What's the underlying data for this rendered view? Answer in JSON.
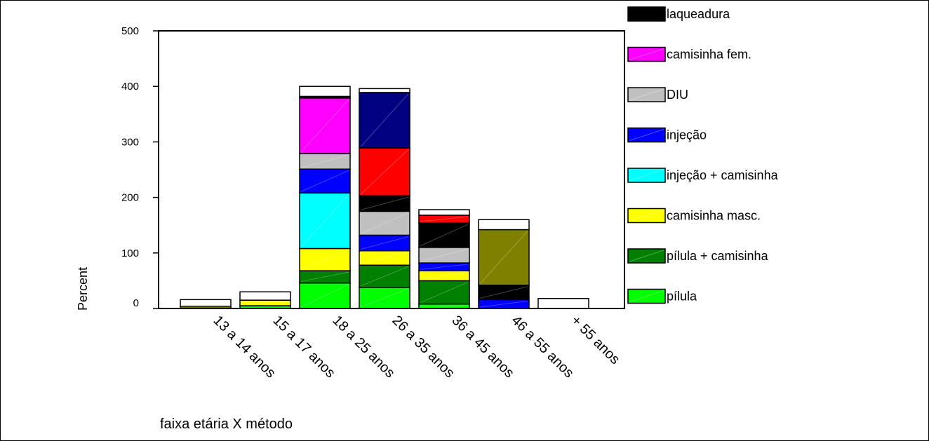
{
  "chart_data": {
    "type": "bar",
    "stacked": true,
    "title": "",
    "caption": "faixa etária X método",
    "xlabel": "",
    "ylabel": "Percent",
    "ylim": [
      0,
      500
    ],
    "yticks": [
      0,
      100,
      200,
      300,
      400,
      500
    ],
    "grid": false,
    "legend_position": "right",
    "categories": [
      "13 a 14 anos",
      "15 a 17 anos",
      "18 a 25 anos",
      "26 a 35 anos",
      "36 a 45 anos",
      "46 a 55 anos",
      "+ 55 anos"
    ],
    "legend": [
      {
        "name": "laqueadura",
        "color": "#000000"
      },
      {
        "name": "camisinha fem.",
        "color": "#ff00ff"
      },
      {
        "name": "DIU",
        "color": "#c0c0c0"
      },
      {
        "name": "injeção",
        "color": "#0000ff"
      },
      {
        "name": "injeção + camisinha",
        "color": "#00ffff"
      },
      {
        "name": "camisinha masc.",
        "color": "#ffff00"
      },
      {
        "name": "pílula + camisinha",
        "color": "#008000"
      },
      {
        "name": "pílula",
        "color": "#00ff00"
      }
    ],
    "stacks": [
      [
        {
          "color": "#00ff00",
          "value": 1
        },
        {
          "color": "#ffff00",
          "value": 3
        },
        {
          "color": "#ffffff",
          "value": 12
        }
      ],
      [
        {
          "color": "#00ff00",
          "value": 5
        },
        {
          "color": "#ffff00",
          "value": 10
        },
        {
          "color": "#ffffff",
          "value": 15
        }
      ],
      [
        {
          "color": "#00ff00",
          "value": 46
        },
        {
          "color": "#008000",
          "value": 22
        },
        {
          "color": "#ffff00",
          "value": 40
        },
        {
          "color": "#00ffff",
          "value": 100
        },
        {
          "color": "#0000ff",
          "value": 43
        },
        {
          "color": "#c0c0c0",
          "value": 28
        },
        {
          "color": "#ff00ff",
          "value": 100
        },
        {
          "color": "#000000",
          "value": 3
        },
        {
          "color": "#ffffff",
          "value": 18
        }
      ],
      [
        {
          "color": "#00ff00",
          "value": 38
        },
        {
          "color": "#008000",
          "value": 40
        },
        {
          "color": "#ffff00",
          "value": 26
        },
        {
          "color": "#0000ff",
          "value": 28
        },
        {
          "color": "#c0c0c0",
          "value": 43
        },
        {
          "color": "#000000",
          "value": 28
        },
        {
          "color": "#ff0000",
          "value": 86
        },
        {
          "color": "#000080",
          "value": 100
        },
        {
          "color": "#ffffff",
          "value": 7
        }
      ],
      [
        {
          "color": "#00ff00",
          "value": 8
        },
        {
          "color": "#008000",
          "value": 42
        },
        {
          "color": "#ffff00",
          "value": 18
        },
        {
          "color": "#0000ff",
          "value": 14
        },
        {
          "color": "#c0c0c0",
          "value": 28
        },
        {
          "color": "#000000",
          "value": 44
        },
        {
          "color": "#ff0000",
          "value": 14
        },
        {
          "color": "#ffffff",
          "value": 10
        }
      ],
      [
        {
          "color": "#0000ff",
          "value": 16
        },
        {
          "color": "#000000",
          "value": 26
        },
        {
          "color": "#808000",
          "value": 100
        },
        {
          "color": "#ffffff",
          "value": 18
        }
      ],
      [
        {
          "color": "#ffffff",
          "value": 18
        }
      ]
    ]
  }
}
